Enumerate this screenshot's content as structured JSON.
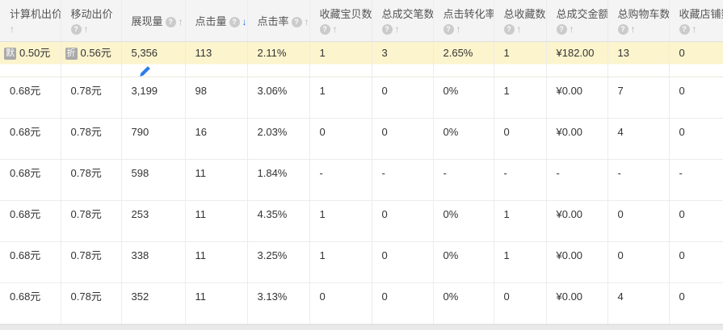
{
  "table": {
    "columns": [
      {
        "key": "pc_bid",
        "label": "计算机出价",
        "has_help": false,
        "sort": "up",
        "active": false,
        "two_line": true
      },
      {
        "key": "mobile_bid",
        "label": "移动出价",
        "has_help": true,
        "sort": "up",
        "active": false,
        "two_line": true
      },
      {
        "key": "impressions",
        "label": "展现量",
        "has_help": true,
        "sort": "up",
        "active": false,
        "two_line": false
      },
      {
        "key": "clicks",
        "label": "点击量",
        "has_help": true,
        "sort": "down",
        "active": true,
        "two_line": false
      },
      {
        "key": "ctr",
        "label": "点击率",
        "has_help": true,
        "sort": "up",
        "active": false,
        "two_line": false
      },
      {
        "key": "fav_items",
        "label": "收藏宝贝数",
        "has_help": true,
        "sort": "up",
        "active": false,
        "two_line": true
      },
      {
        "key": "orders",
        "label": "总成交笔数",
        "has_help": true,
        "sort": "up",
        "active": false,
        "two_line": true
      },
      {
        "key": "conv_rate",
        "label": "点击转化率",
        "has_help": true,
        "sort": "up",
        "active": false,
        "two_line": true
      },
      {
        "key": "total_favs",
        "label": "总收藏数",
        "has_help": true,
        "sort": "up",
        "active": false,
        "two_line": true
      },
      {
        "key": "gmv",
        "label": "总成交金额",
        "has_help": true,
        "sort": "up",
        "active": false,
        "two_line": true
      },
      {
        "key": "carts",
        "label": "总购物车数",
        "has_help": true,
        "sort": "up",
        "active": false,
        "two_line": true
      },
      {
        "key": "shop_favs",
        "label": "收藏店铺数",
        "has_help": true,
        "sort": "up",
        "active": false,
        "two_line": true
      }
    ],
    "rows": [
      {
        "highlighted": true,
        "has_edit_icon": true,
        "cells": [
          {
            "badge": "默",
            "text": "0.50元"
          },
          {
            "badge": "折",
            "text": "0.56元"
          },
          {
            "text": "5,356"
          },
          {
            "text": "113"
          },
          {
            "text": "2.11%"
          },
          {
            "text": "1"
          },
          {
            "text": "3"
          },
          {
            "text": "2.65%"
          },
          {
            "text": "1"
          },
          {
            "text": "¥182.00"
          },
          {
            "text": "13"
          },
          {
            "text": "0"
          }
        ]
      },
      {
        "highlighted": false,
        "cells": [
          {
            "text": "0.68元"
          },
          {
            "text": "0.78元"
          },
          {
            "text": "3,199"
          },
          {
            "text": "98"
          },
          {
            "text": "3.06%"
          },
          {
            "text": "1"
          },
          {
            "text": "0"
          },
          {
            "text": "0%"
          },
          {
            "text": "1"
          },
          {
            "text": "¥0.00"
          },
          {
            "text": "7"
          },
          {
            "text": "0"
          }
        ]
      },
      {
        "highlighted": false,
        "cells": [
          {
            "text": "0.68元"
          },
          {
            "text": "0.78元"
          },
          {
            "text": "790"
          },
          {
            "text": "16"
          },
          {
            "text": "2.03%"
          },
          {
            "text": "0"
          },
          {
            "text": "0"
          },
          {
            "text": "0%"
          },
          {
            "text": "0"
          },
          {
            "text": "¥0.00"
          },
          {
            "text": "4"
          },
          {
            "text": "0"
          }
        ]
      },
      {
        "highlighted": false,
        "cells": [
          {
            "text": "0.68元"
          },
          {
            "text": "0.78元"
          },
          {
            "text": "598"
          },
          {
            "text": "11"
          },
          {
            "text": "1.84%"
          },
          {
            "text": "-"
          },
          {
            "text": "-"
          },
          {
            "text": "-"
          },
          {
            "text": "-"
          },
          {
            "text": "-"
          },
          {
            "text": "-"
          },
          {
            "text": "-"
          }
        ]
      },
      {
        "highlighted": false,
        "cells": [
          {
            "text": "0.68元"
          },
          {
            "text": "0.78元"
          },
          {
            "text": "253"
          },
          {
            "text": "11"
          },
          {
            "text": "4.35%"
          },
          {
            "text": "1"
          },
          {
            "text": "0"
          },
          {
            "text": "0%"
          },
          {
            "text": "1"
          },
          {
            "text": "¥0.00"
          },
          {
            "text": "0"
          },
          {
            "text": "0"
          }
        ]
      },
      {
        "highlighted": false,
        "cells": [
          {
            "text": "0.68元"
          },
          {
            "text": "0.78元"
          },
          {
            "text": "338"
          },
          {
            "text": "11"
          },
          {
            "text": "3.25%"
          },
          {
            "text": "1"
          },
          {
            "text": "0"
          },
          {
            "text": "0%"
          },
          {
            "text": "1"
          },
          {
            "text": "¥0.00"
          },
          {
            "text": "0"
          },
          {
            "text": "0"
          }
        ]
      },
      {
        "highlighted": false,
        "cells": [
          {
            "text": "0.68元"
          },
          {
            "text": "0.78元"
          },
          {
            "text": "352"
          },
          {
            "text": "11"
          },
          {
            "text": "3.13%"
          },
          {
            "text": "0"
          },
          {
            "text": "0"
          },
          {
            "text": "0%"
          },
          {
            "text": "0"
          },
          {
            "text": "¥0.00"
          },
          {
            "text": "4"
          },
          {
            "text": "0"
          }
        ]
      }
    ]
  },
  "icons": {
    "help_glyph": "?",
    "sort_up_glyph": "↑",
    "sort_down_glyph": "↓",
    "edit_icon": "pencil-icon"
  },
  "colors": {
    "highlight_row": "#fcf4cd",
    "active_sort_blue": "#1c6fe8",
    "badge_gray": "#a9a9a9",
    "header_bg": "#f4f4f4"
  }
}
